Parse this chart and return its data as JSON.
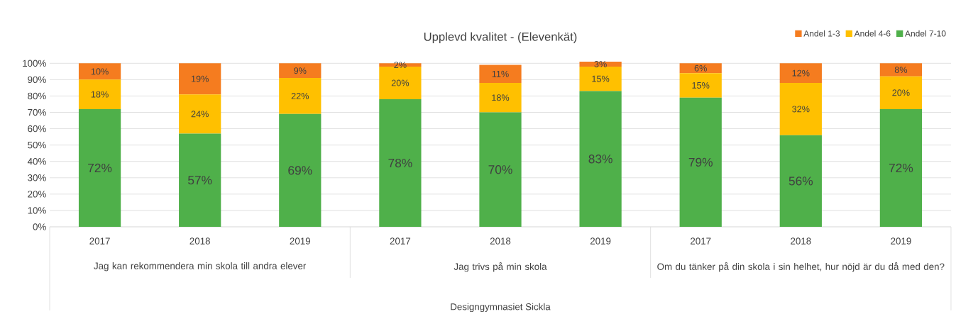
{
  "chart_data": {
    "type": "bar",
    "stacked": true,
    "title": "Upplevd kvalitet - (Elevenkät)",
    "categories": [
      "2017",
      "2018",
      "2019",
      "2017",
      "2018",
      "2019",
      "2017",
      "2018",
      "2019"
    ],
    "annotations": [
      "Jag kan rekommendera min skola till andra elever",
      "Jag trivs på min skola",
      "Om du tänker på din skola i sin helhet, hur nöjd är du då med den?",
      "Designgymnasiet Sickla"
    ],
    "series": [
      {
        "name": "Andel 7-10",
        "color": "#4fb04a",
        "values": [
          72,
          57,
          69,
          78,
          70,
          83,
          79,
          56,
          72
        ],
        "value_labels": [
          "72%",
          "57%",
          "69%",
          "78%",
          "70%",
          "83%",
          "79%",
          "56%",
          "72%"
        ]
      },
      {
        "name": "Andel 4-6",
        "color": "#ffc000",
        "values": [
          18,
          24,
          22,
          20,
          18,
          15,
          15,
          32,
          20
        ],
        "value_labels": [
          "18%",
          "24%",
          "22%",
          "20%",
          "18%",
          "15%",
          "15%",
          "32%",
          "20%"
        ]
      },
      {
        "name": "Andel 1-3",
        "color": "#f57c1f",
        "values": [
          10,
          19,
          9,
          2,
          11,
          3,
          6,
          12,
          8
        ],
        "value_labels": [
          "10%",
          "19%",
          "9%",
          "2%",
          "11%",
          "3%",
          "6%",
          "12%",
          "8%"
        ]
      }
    ],
    "ylim": [
      0,
      101
    ],
    "yticks": [
      {
        "value": 0,
        "label": "0%"
      },
      {
        "value": 10,
        "label": "10%"
      },
      {
        "value": 20,
        "label": "20%"
      },
      {
        "value": 30,
        "label": "30%"
      },
      {
        "value": 40,
        "label": "40%"
      },
      {
        "value": 50,
        "label": "50%"
      },
      {
        "value": 60,
        "label": "60%"
      },
      {
        "value": 70,
        "label": "70%"
      },
      {
        "value": 80,
        "label": "80%"
      },
      {
        "value": 90,
        "label": "90%"
      },
      {
        "value": 100,
        "label": "100%"
      }
    ],
    "grid": "y",
    "legend": "top right"
  }
}
